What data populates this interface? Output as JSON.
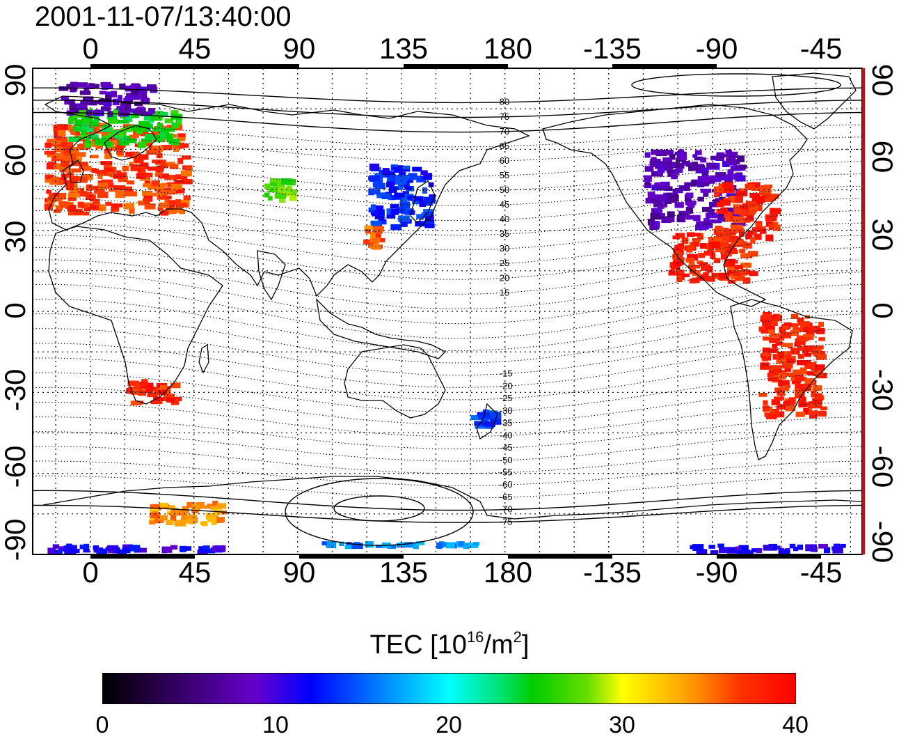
{
  "title": "2001-11-07/13:40:00",
  "axes": {
    "top_ticks": [
      "0",
      "45",
      "90",
      "135",
      "180",
      "-135",
      "-90",
      "-45"
    ],
    "bottom_ticks": [
      "0",
      "45",
      "90",
      "135",
      "180",
      "-135",
      "-90",
      "-45"
    ],
    "left_ticks": [
      "90",
      "60",
      "30",
      "0",
      "-30",
      "-60",
      "-90"
    ],
    "right_ticks": [
      "90",
      "60",
      "30",
      "0",
      "-30",
      "-60",
      "-90"
    ]
  },
  "contour_labels": [
    "80",
    "75",
    "70",
    "65",
    "60",
    "55",
    "50",
    "45",
    "40",
    "35",
    "30",
    "25",
    "20",
    "15",
    "-15",
    "-20",
    "-25",
    "-30",
    "-35",
    "-40",
    "-45",
    "-50",
    "-55",
    "-60",
    "-65",
    "-70",
    "-75"
  ],
  "colorbar": {
    "label_main": "TEC  [10",
    "label_exp1": "16",
    "label_mid": "/m",
    "label_exp2": "2",
    "label_end": "]",
    "ticks": [
      "0",
      "10",
      "20",
      "30",
      "40"
    ]
  },
  "colors": {
    "low": "#000000",
    "high": "#ff0000"
  },
  "chart_data": {
    "type": "heatmap",
    "title": "2001-11-07/13:40:00",
    "xlabel": "",
    "ylabel": "",
    "xlim": [
      -25,
      335
    ],
    "ylim": [
      -90,
      90
    ],
    "colorbar_range": [
      0,
      40
    ],
    "grid": true,
    "regions": [
      {
        "lon_range": [
          -20,
          45
        ],
        "lat_range": [
          35,
          70
        ],
        "tec": 37
      },
      {
        "lon_range": [
          -10,
          40
        ],
        "lat_range": [
          60,
          75
        ],
        "tec": 25
      },
      {
        "lon_range": [
          -15,
          30
        ],
        "lat_range": [
          72,
          85
        ],
        "tec": 8
      },
      {
        "lon_range": [
          75,
          90
        ],
        "lat_range": [
          40,
          50
        ],
        "tec": 27
      },
      {
        "lon_range": [
          120,
          150
        ],
        "lat_range": [
          30,
          55
        ],
        "tec": 13
      },
      {
        "lon_range": [
          118,
          128
        ],
        "lat_range": [
          22,
          32
        ],
        "tec": 36
      },
      {
        "lon_range": [
          240,
          285
        ],
        "lat_range": [
          30,
          60
        ],
        "tec": 8
      },
      {
        "lon_range": [
          270,
          300
        ],
        "lat_range": [
          25,
          48
        ],
        "tec": 38
      },
      {
        "lon_range": [
          250,
          290
        ],
        "lat_range": [
          10,
          30
        ],
        "tec": 38
      },
      {
        "lon_range": [
          290,
          320
        ],
        "lat_range": [
          -40,
          0
        ],
        "tec": 38
      },
      {
        "lon_range": [
          15,
          40
        ],
        "lat_range": [
          -35,
          -25
        ],
        "tec": 38
      },
      {
        "lon_range": [
          165,
          180
        ],
        "lat_range": [
          -45,
          -35
        ],
        "tec": 14
      },
      {
        "lon_range": [
          25,
          60
        ],
        "lat_range": [
          -80,
          -70
        ],
        "tec": 34
      },
      {
        "lon_range": [
          -20,
          60
        ],
        "lat_range": [
          -90,
          -86
        ],
        "tec": 11
      },
      {
        "lon_range": [
          100,
          170
        ],
        "lat_range": [
          -88,
          -85
        ],
        "tec": 16
      },
      {
        "lon_range": [
          260,
          330
        ],
        "lat_range": [
          -90,
          -86
        ],
        "tec": 11
      }
    ]
  }
}
